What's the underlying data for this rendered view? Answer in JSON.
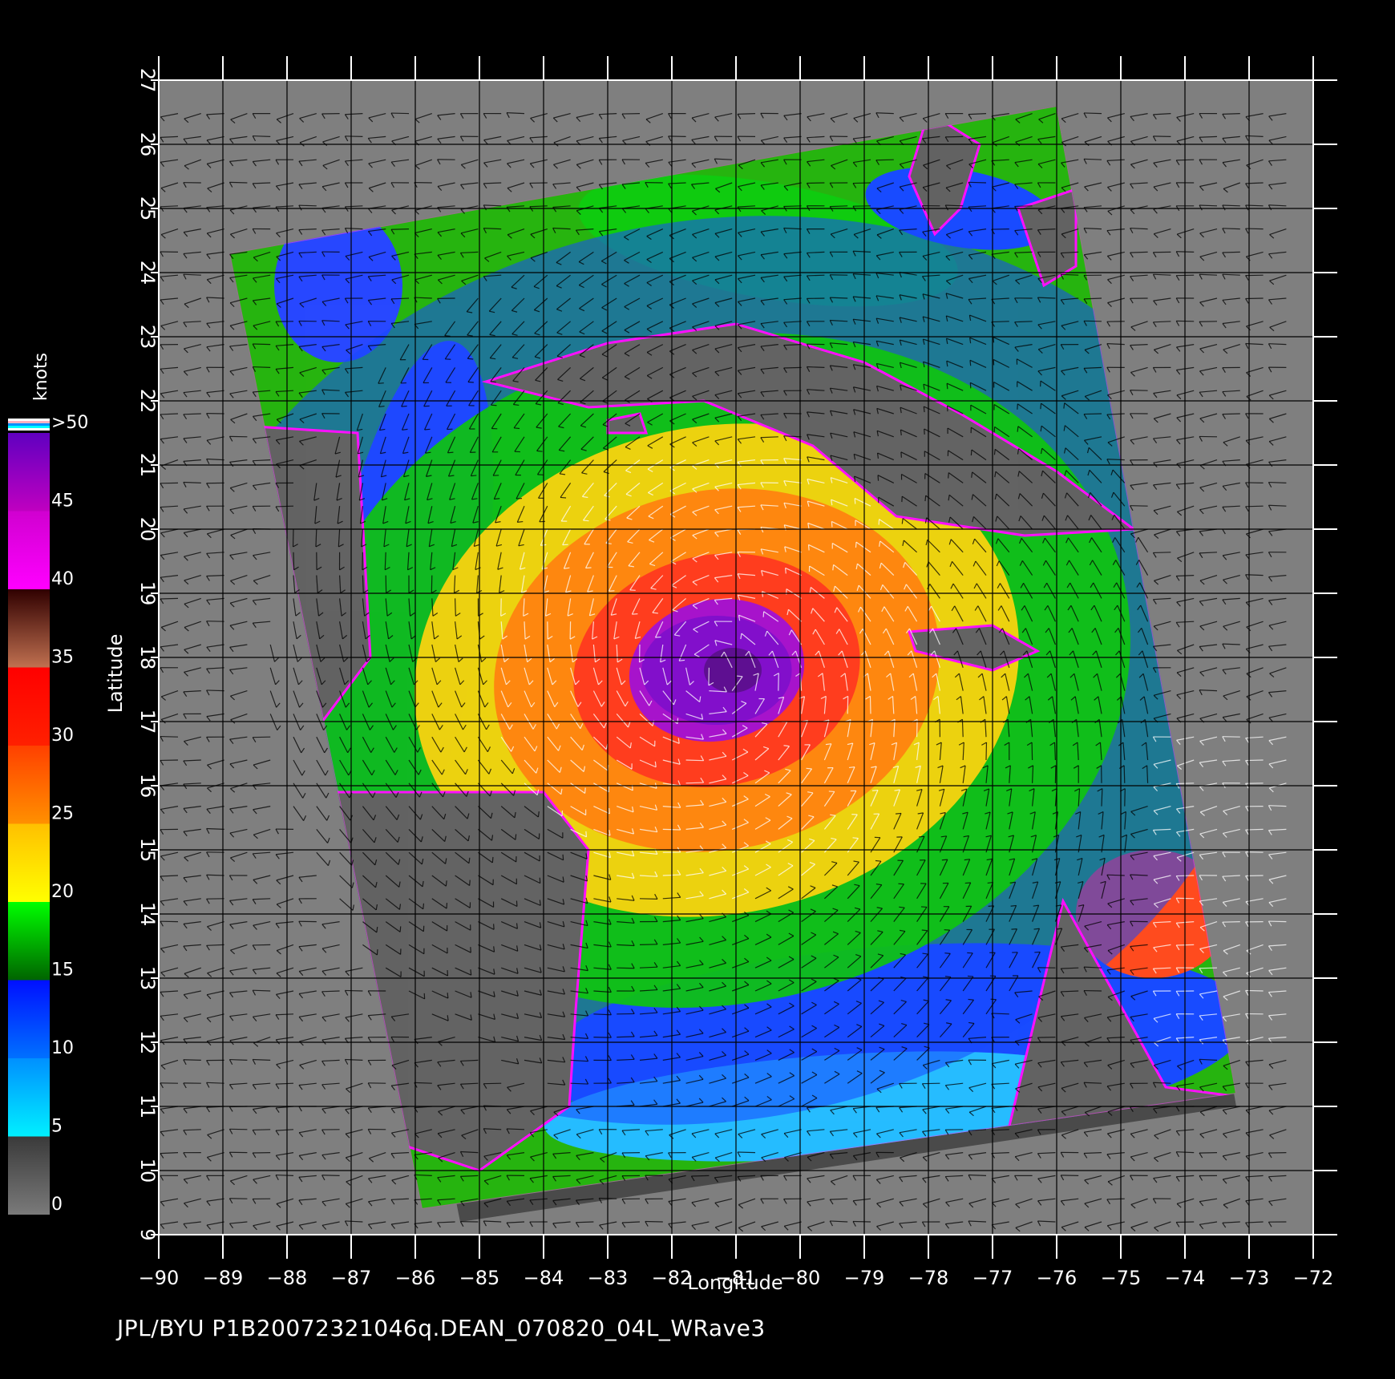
{
  "chart_data": {
    "type": "heatmap",
    "xlabel": "Longitude",
    "ylabel": "Latitude",
    "xlim": [
      -90,
      -72
    ],
    "ylim": [
      9,
      27
    ],
    "x_ticks": [
      "−90",
      "−89",
      "−88",
      "−87",
      "−86",
      "−85",
      "−84",
      "−83",
      "−82",
      "−81",
      "−80",
      "−79",
      "−78",
      "−77",
      "−76",
      "−75",
      "−74",
      "−73",
      "−72"
    ],
    "y_ticks": [
      "9",
      "10",
      "11",
      "12",
      "13",
      "14",
      "15",
      "16",
      "17",
      "18",
      "19",
      "20",
      "21",
      "22",
      "23",
      "24",
      "25",
      "26",
      "27"
    ],
    "grid": true,
    "colorbar": {
      "title": "knots",
      "labels": [
        "0",
        "5",
        "10",
        "15",
        "20",
        "25",
        "30",
        "35",
        "40",
        "45",
        ">50"
      ],
      "bands": [
        {
          "from": 0,
          "to": 5,
          "colors": [
            "#7a7a7a",
            "#3a3a3a"
          ]
        },
        {
          "from": 5,
          "to": 10,
          "colors": [
            "#00f0ff",
            "#0090ff"
          ]
        },
        {
          "from": 10,
          "to": 15,
          "colors": [
            "#0070ff",
            "#0010ff"
          ]
        },
        {
          "from": 15,
          "to": 20,
          "colors": [
            "#006400",
            "#00ff00"
          ]
        },
        {
          "from": 20,
          "to": 25,
          "colors": [
            "#ffff00",
            "#ffc000"
          ]
        },
        {
          "from": 25,
          "to": 30,
          "colors": [
            "#ff9000",
            "#ff4000"
          ]
        },
        {
          "from": 30,
          "to": 35,
          "colors": [
            "#ff2000",
            "#ff0000"
          ]
        },
        {
          "from": 35,
          "to": 40,
          "colors": [
            "#c07050",
            "#300000"
          ]
        },
        {
          "from": 40,
          "to": 45,
          "colors": [
            "#ff00ff",
            "#d000d0"
          ]
        },
        {
          "from": 45,
          "to": 50,
          "colors": [
            "#c000c0",
            "#6000c0"
          ]
        }
      ]
    },
    "storm_center": {
      "lon": -81.3,
      "lat": 17.8
    },
    "wind_bands": [
      {
        "radius_deg": 1.1,
        "color": "#9a00d8"
      },
      {
        "radius_deg": 1.8,
        "color": "#ff2a10"
      },
      {
        "radius_deg": 2.8,
        "color": "#ff7a00"
      },
      {
        "radius_deg": 3.8,
        "color": "#ffd000"
      },
      {
        "radius_deg": 5.2,
        "color": "#00c000"
      },
      {
        "radius_deg": 7.0,
        "color": "#0a3cff"
      }
    ],
    "swath": {
      "lon_lat_corners": [
        [
          -88.9,
          24.3
        ],
        [
          -76.0,
          26.6
        ],
        [
          -73.2,
          11.2
        ],
        [
          -85.9,
          9.4
        ]
      ]
    },
    "footer": "JPL/BYU  P1B20072321046q.DEAN_070820_04L_WRave3"
  }
}
